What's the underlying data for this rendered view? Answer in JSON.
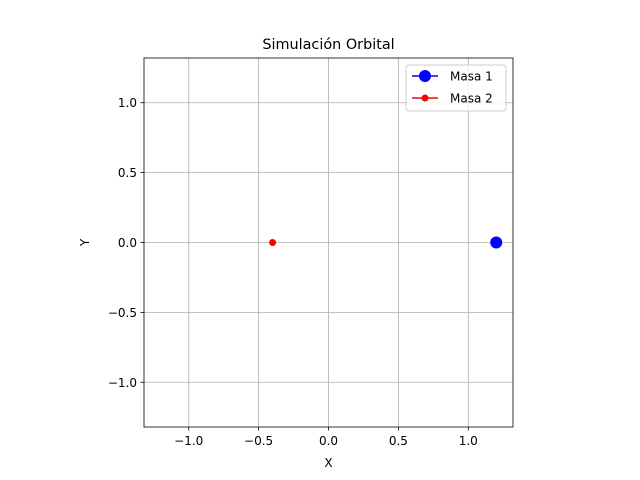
{
  "chart_data": {
    "type": "scatter",
    "title": "Simulación Orbital",
    "xlabel": "X",
    "ylabel": "Y",
    "xlim": [
      -1.32,
      1.32
    ],
    "ylim": [
      -1.32,
      1.32
    ],
    "xticks": [
      -1.0,
      -0.5,
      0.0,
      0.5,
      1.0
    ],
    "yticks": [
      -1.0,
      -0.5,
      0.0,
      0.5,
      1.0
    ],
    "xtick_labels": [
      "−1.0",
      "−0.5",
      "0.0",
      "0.5",
      "1.0"
    ],
    "ytick_labels": [
      "−1.0",
      "−0.5",
      "0.0",
      "0.5",
      "1.0"
    ],
    "grid": true,
    "legend_position": "top-right",
    "series": [
      {
        "name": "Masa 1",
        "x": [
          1.2
        ],
        "y": [
          0.0
        ],
        "color": "#0000ff",
        "marker": "large-circle"
      },
      {
        "name": "Masa 2",
        "x": [
          -0.4
        ],
        "y": [
          0.0
        ],
        "color": "#ff0000",
        "marker": "small-circle"
      }
    ]
  }
}
